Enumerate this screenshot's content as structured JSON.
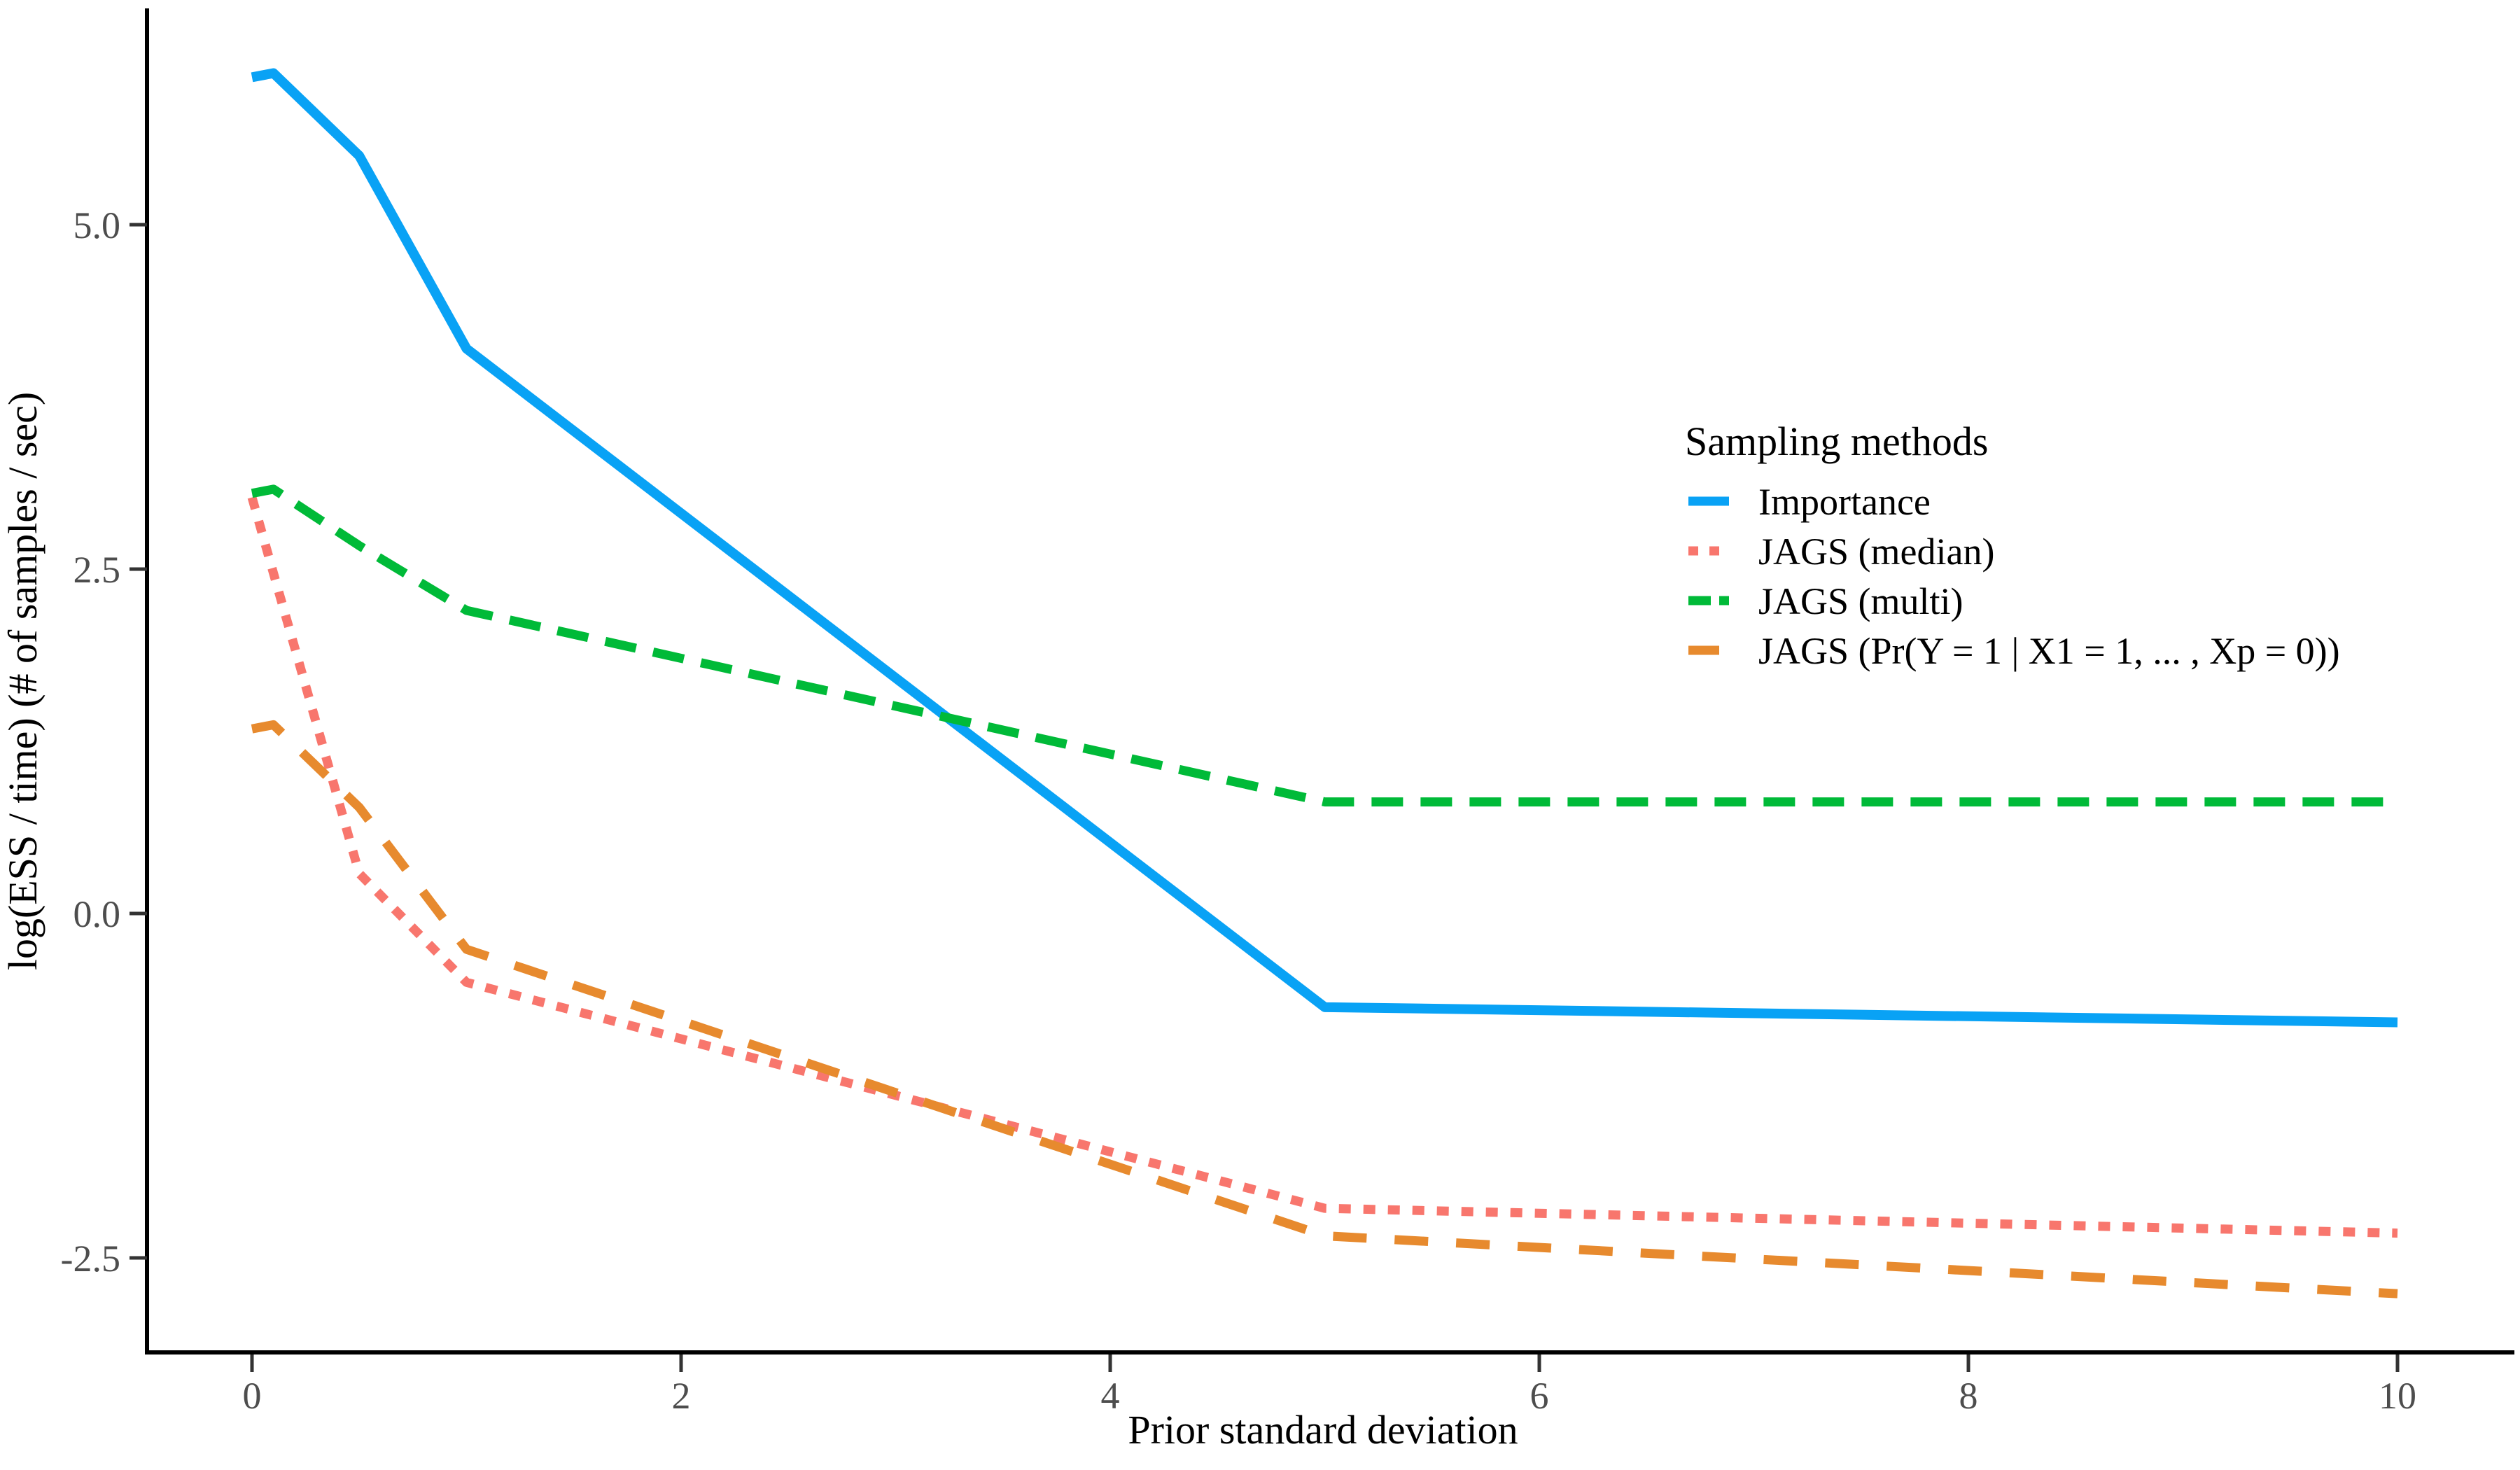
{
  "chart_data": {
    "type": "line",
    "title": "",
    "xlabel": "Prior standard deviation",
    "ylabel": "log(ESS / time) (# of samples / sec)",
    "x": [
      0,
      0.1,
      0.5,
      1,
      5,
      10
    ],
    "series": [
      {
        "name": "Importance",
        "color": "#09A2F5",
        "linetype": "solid",
        "values": [
          6.07,
          6.1,
          5.5,
          4.1,
          -0.68,
          -0.79
        ]
      },
      {
        "name": "JAGS (median)",
        "color": "#F8766D",
        "linetype": "dotted",
        "values": [
          3.02,
          2.47,
          0.29,
          -0.5,
          -2.14,
          -2.32
        ]
      },
      {
        "name": "JAGS (multi)",
        "color": "#00BA38",
        "linetype": "dashed",
        "values": [
          3.05,
          3.08,
          2.67,
          2.2,
          0.81,
          0.81
        ]
      },
      {
        "name": "JAGS (Pr(Y = 1 | X1 = 1, ... , Xp = 0))",
        "color": "#E78A2E",
        "linetype": "longdash",
        "values": [
          1.34,
          1.37,
          0.77,
          -0.26,
          -2.34,
          -2.76
        ]
      }
    ],
    "x_ticks": {
      "values": [
        0,
        2,
        4,
        6,
        8,
        10
      ],
      "labels": [
        "0",
        "2",
        "4",
        "6",
        "8",
        "10"
      ]
    },
    "y_ticks": {
      "values": [
        5.0,
        2.5,
        0.0,
        -2.5
      ],
      "labels": [
        "5.0",
        "2.5",
        "0.0",
        "-2.5"
      ]
    },
    "x_range": [
      0,
      10
    ],
    "y_range": [
      -3.2,
      6.6
    ],
    "grid": false,
    "legend": {
      "title": "Sampling methods",
      "position": "right",
      "entries": [
        "Importance",
        "JAGS (median)",
        "JAGS (multi)",
        "JAGS (Pr(Y = 1 | X1 = 1, ... , Xp = 0))"
      ]
    }
  },
  "colors": {
    "background": "#FFFFFF",
    "axis_line": "#000000",
    "tick_mark": "#333333",
    "tick_label": "#4D4D4D",
    "title_text": "#000000",
    "series_importance": "#09A2F5",
    "series_jags_median": "#F8766D",
    "series_jags_multi": "#00BA38",
    "series_jags_pr": "#E78A2E"
  }
}
